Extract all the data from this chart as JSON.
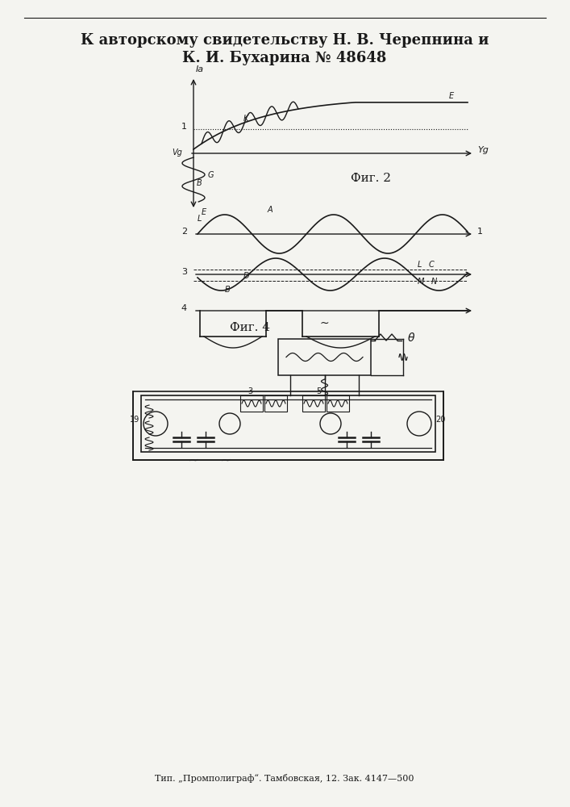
{
  "title_line1": "К авторскому свидетельству Н. В. Черепнина и",
  "title_line2": "К. И. Бухарина № 48648",
  "fig2_label": "Фиг. 2",
  "fig4_label": "Фиг. 4",
  "footer": "Тип. „Промполиграф“. Тамбовская, 12. Зак. 4147—500",
  "bg_color": "#f4f4f0",
  "line_color": "#1a1a1a"
}
